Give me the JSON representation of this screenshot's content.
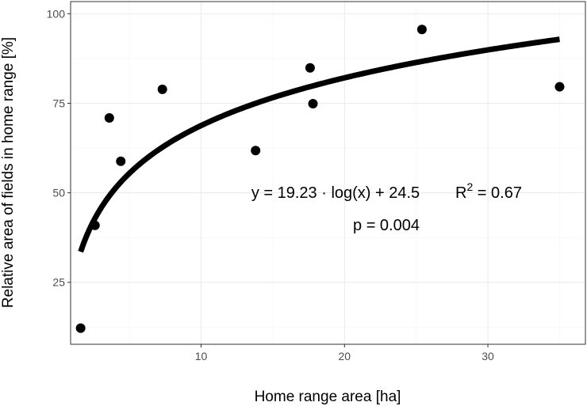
{
  "chart_data": {
    "type": "scatter",
    "title": "",
    "xlabel": "Home range area [ha]",
    "ylabel": "Relative area of fields in home range [%]",
    "xlim": [
      0.9,
      36.8
    ],
    "ylim": [
      7.7,
      103.4
    ],
    "x_ticks": [
      10,
      20,
      30
    ],
    "y_ticks": [
      25,
      50,
      75,
      100
    ],
    "grid": true,
    "points": [
      {
        "x": 1.6,
        "y": 12.2
      },
      {
        "x": 2.6,
        "y": 40.9
      },
      {
        "x": 3.6,
        "y": 70.9
      },
      {
        "x": 4.4,
        "y": 58.8
      },
      {
        "x": 7.3,
        "y": 78.9
      },
      {
        "x": 13.8,
        "y": 61.8
      },
      {
        "x": 17.6,
        "y": 84.9
      },
      {
        "x": 17.8,
        "y": 74.9
      },
      {
        "x": 25.4,
        "y": 95.6
      },
      {
        "x": 35.0,
        "y": 79.6
      }
    ],
    "fit": {
      "type": "log",
      "a": 19.23,
      "b": 24.5,
      "x_range": [
        1.6,
        35.0
      ]
    },
    "annotations": {
      "equation": "y = 19.23 · log(x) + 24.5",
      "r2_base": "R",
      "r2_exp": "2",
      "r2_value": " = 0.67",
      "p_value": "p = 0.004"
    },
    "colors": {
      "points": "#000000",
      "fit_line": "#000000",
      "grid_major": "#ebebeb",
      "grid_minor": "#f5f5f5",
      "panel_border": "#333333"
    }
  }
}
